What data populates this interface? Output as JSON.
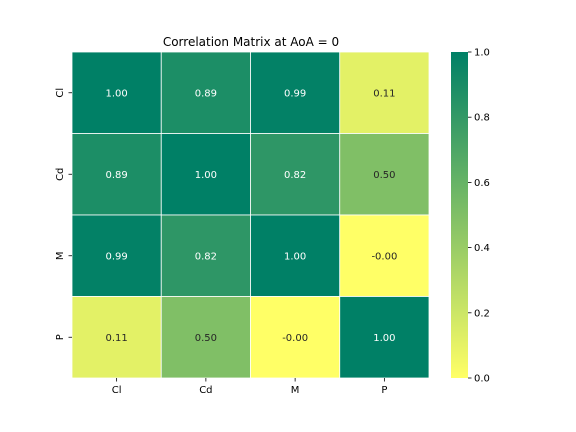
{
  "chart_data": {
    "type": "heatmap",
    "title": "Correlation Matrix at AoA = 0",
    "x_categories": [
      "Cl",
      "Cd",
      "M",
      "P"
    ],
    "y_categories": [
      "Cl",
      "Cd",
      "M",
      "P"
    ],
    "values": [
      [
        1.0,
        0.89,
        0.99,
        0.11
      ],
      [
        0.89,
        1.0,
        0.82,
        0.5
      ],
      [
        0.99,
        0.82,
        1.0,
        -0.0
      ],
      [
        0.11,
        0.5,
        -0.0,
        1.0
      ]
    ],
    "value_labels": [
      [
        "1.00",
        "0.89",
        "0.99",
        "0.11"
      ],
      [
        "0.89",
        "1.00",
        "0.82",
        "0.50"
      ],
      [
        "0.99",
        "0.82",
        "1.00",
        "-0.00"
      ],
      [
        "0.11",
        "0.50",
        "-0.00",
        "1.00"
      ]
    ],
    "colorbar": {
      "range": [
        0.0,
        1.0
      ],
      "ticks": [
        0.0,
        0.2,
        0.4,
        0.6,
        0.8,
        1.0
      ],
      "tick_labels": [
        "0.0",
        "0.2",
        "0.4",
        "0.6",
        "0.8",
        "1.0"
      ],
      "colormap": "summer_r",
      "low_color": "#ffff66",
      "high_color": "#008066"
    },
    "grid": true,
    "legend": "colorbar-right"
  }
}
